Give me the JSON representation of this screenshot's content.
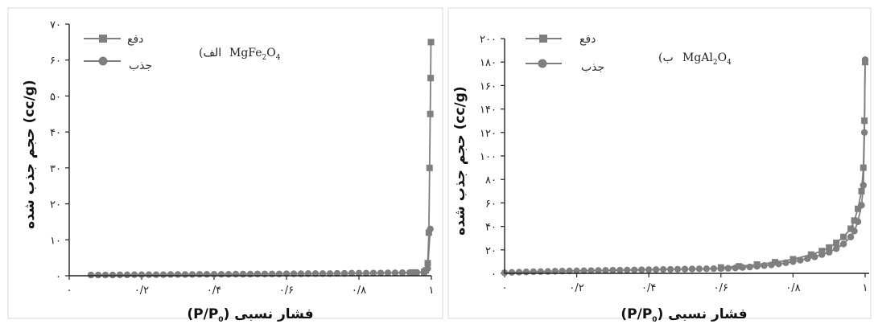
{
  "chart_data": [
    {
      "type": "line",
      "label": "(الف",
      "formula": [
        "MgFe",
        "2",
        "O",
        "4"
      ],
      "xlabel": [
        "فشار نسبی ",
        "(P/P",
        "0",
        ")"
      ],
      "ylabel": "حجم جذب شده (cc/g)",
      "xlim": [
        0,
        1.0
      ],
      "ylim": [
        0,
        70
      ],
      "x_ticks": [
        0,
        0.2,
        0.4,
        0.6,
        0.8,
        1.0
      ],
      "x_tick_labels": [
        "۰",
        "۰/۲",
        "۰/۴",
        "۰/۶",
        "۰/۸",
        "۱"
      ],
      "y_ticks": [
        0,
        10,
        20,
        30,
        40,
        50,
        60,
        70
      ],
      "y_tick_labels": [
        "۰",
        "۱۰",
        "۲۰",
        "۳۰",
        "۴۰",
        "۵۰",
        "۶۰",
        "۷۰"
      ],
      "series": [
        {
          "name": "دفع",
          "marker": "square",
          "x": [
            0.95,
            0.98,
            0.985,
            0.99,
            0.993,
            0.995,
            0.997,
            0.998,
            0.999
          ],
          "y": [
            0.9,
            1.1,
            1.5,
            3.5,
            12,
            30,
            45,
            55,
            65
          ]
        },
        {
          "name": "جذب",
          "marker": "circle",
          "x": [
            0.06,
            0.08,
            0.1,
            0.12,
            0.14,
            0.16,
            0.18,
            0.2,
            0.22,
            0.24,
            0.26,
            0.28,
            0.3,
            0.32,
            0.34,
            0.36,
            0.38,
            0.4,
            0.42,
            0.44,
            0.46,
            0.48,
            0.5,
            0.52,
            0.54,
            0.56,
            0.58,
            0.6,
            0.62,
            0.64,
            0.66,
            0.68,
            0.7,
            0.72,
            0.74,
            0.76,
            0.78,
            0.8,
            0.82,
            0.84,
            0.86,
            0.88,
            0.9,
            0.92,
            0.94,
            0.96,
            0.98,
            0.99,
            0.997
          ],
          "y": [
            0.2,
            0.2,
            0.2,
            0.2,
            0.25,
            0.25,
            0.3,
            0.3,
            0.3,
            0.3,
            0.3,
            0.35,
            0.35,
            0.35,
            0.35,
            0.4,
            0.4,
            0.4,
            0.4,
            0.4,
            0.45,
            0.45,
            0.45,
            0.5,
            0.5,
            0.5,
            0.5,
            0.55,
            0.55,
            0.55,
            0.6,
            0.6,
            0.6,
            0.6,
            0.65,
            0.65,
            0.7,
            0.7,
            0.7,
            0.75,
            0.75,
            0.8,
            0.8,
            0.85,
            0.85,
            0.9,
            1.0,
            2.0,
            13
          ]
        }
      ]
    },
    {
      "type": "line",
      "label": "(ب",
      "formula": [
        "MgAl",
        "2",
        "O",
        "4"
      ],
      "xlabel": [
        "فشار نسبی ",
        "(P/P",
        "0",
        ")"
      ],
      "ylabel": "حجم جذب شده (cc/g)",
      "xlim": [
        0,
        1.0
      ],
      "ylim": [
        0,
        200
      ],
      "x_ticks": [
        0,
        0.2,
        0.4,
        0.6,
        0.8,
        1.0
      ],
      "x_tick_labels": [
        "۰",
        "۰/۲",
        "۰/۴",
        "۰/۶",
        "۰/۸",
        "۱"
      ],
      "y_ticks": [
        0,
        20,
        40,
        60,
        80,
        100,
        120,
        140,
        160,
        180,
        200
      ],
      "y_tick_labels": [
        "۰",
        "۲۰",
        "۴۰",
        "۶۰",
        "۸۰",
        "۱۰۰",
        "۱۲۰",
        "۱۴۰",
        "۱۶۰",
        "۱۸۰",
        "۲۰۰"
      ],
      "series": [
        {
          "name": "دفع",
          "marker": "square",
          "x": [
            0.6,
            0.65,
            0.7,
            0.75,
            0.8,
            0.85,
            0.88,
            0.9,
            0.92,
            0.94,
            0.96,
            0.97,
            0.98,
            0.99,
            0.995,
            0.998,
            1.0
          ],
          "y": [
            5,
            6,
            7.5,
            9.5,
            12,
            16,
            19,
            22,
            26,
            31,
            38,
            45,
            55,
            70,
            90,
            130,
            180
          ]
        },
        {
          "name": "جذب",
          "marker": "circle",
          "x": [
            0.0,
            0.02,
            0.04,
            0.06,
            0.08,
            0.1,
            0.12,
            0.14,
            0.16,
            0.18,
            0.2,
            0.22,
            0.24,
            0.26,
            0.28,
            0.3,
            0.32,
            0.34,
            0.36,
            0.38,
            0.4,
            0.42,
            0.44,
            0.46,
            0.48,
            0.5,
            0.52,
            0.54,
            0.56,
            0.58,
            0.6,
            0.62,
            0.64,
            0.66,
            0.68,
            0.7,
            0.72,
            0.74,
            0.76,
            0.78,
            0.8,
            0.82,
            0.84,
            0.86,
            0.88,
            0.9,
            0.92,
            0.94,
            0.96,
            0.97,
            0.98,
            0.99,
            0.995,
            0.998,
            1.0
          ],
          "y": [
            0.5,
            0.8,
            1.0,
            1.2,
            1.4,
            1.5,
            1.6,
            1.8,
            1.9,
            2.0,
            2.1,
            2.2,
            2.3,
            2.4,
            2.5,
            2.6,
            2.7,
            2.8,
            2.9,
            3.0,
            3.1,
            3.2,
            3.3,
            3.4,
            3.5,
            3.6,
            3.7,
            3.8,
            3.9,
            4.0,
            4.1,
            4.3,
            4.6,
            5.0,
            5.4,
            6.0,
            6.6,
            7.2,
            8.0,
            9.0,
            10,
            11.2,
            12.5,
            14,
            16,
            18,
            21,
            25,
            31,
            36,
            44,
            58,
            75,
            120,
            182
          ]
        }
      ]
    }
  ],
  "colors": {
    "series": "#7f7f7f",
    "axis": "#222222",
    "frame": "#d8d8d8"
  }
}
